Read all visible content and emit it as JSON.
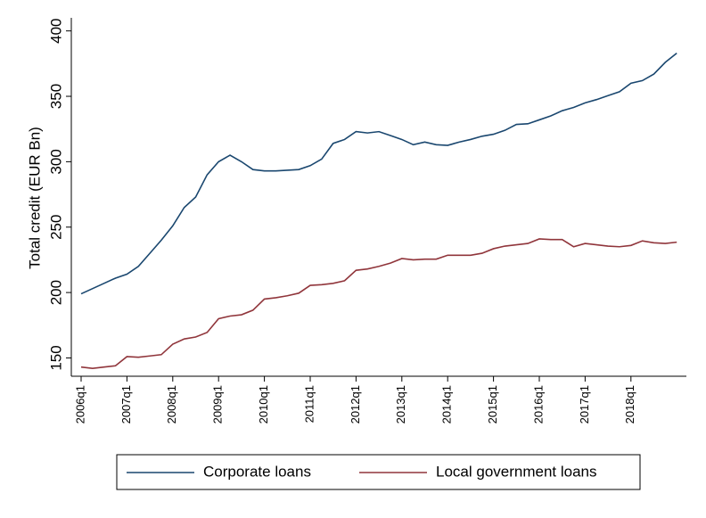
{
  "chart_data": {
    "type": "line",
    "ylabel": "Total credit (EUR Bn)",
    "categories": [
      "2006q1",
      null,
      null,
      null,
      "2007q1",
      null,
      null,
      null,
      "2008q1",
      null,
      null,
      null,
      "2009q1",
      null,
      null,
      null,
      "2010q1",
      null,
      null,
      null,
      "2011q1",
      null,
      null,
      null,
      "2012q1",
      null,
      null,
      null,
      "2013q1",
      null,
      null,
      null,
      "2014q1",
      null,
      null,
      null,
      "2015q1",
      null,
      null,
      null,
      "2016q1",
      null,
      null,
      null,
      "2017q1",
      null,
      null,
      null,
      "2018q1",
      null,
      null,
      null,
      null
    ],
    "series": [
      {
        "name": "Corporate loans",
        "color": "#1a476f",
        "values": [
          199,
          203,
          207,
          211,
          214,
          220,
          230,
          240,
          251,
          265,
          273,
          290,
          300,
          305,
          300,
          294,
          293,
          293,
          293.5,
          294,
          297,
          302,
          314,
          317,
          323,
          322,
          323,
          320,
          317,
          313,
          315,
          313,
          312.5,
          315,
          317,
          319.5,
          321,
          324,
          328.5,
          329,
          332,
          335,
          339,
          341.5,
          345,
          347.5,
          350.5,
          353.5,
          360,
          362,
          367,
          376,
          383
        ]
      },
      {
        "name": "Local government loans",
        "color": "#90353b",
        "values": [
          143,
          142,
          143,
          144,
          151,
          150.5,
          151.5,
          152.5,
          160.5,
          164.5,
          166,
          169.5,
          180,
          182,
          183,
          186.5,
          195,
          196,
          197.5,
          199.5,
          205.5,
          206,
          207,
          209,
          217,
          218,
          220,
          222.5,
          226,
          225,
          225.5,
          225.5,
          228.5,
          228.5,
          228.5,
          230,
          233.5,
          235.5,
          236.5,
          237.5,
          241,
          240.5,
          240.5,
          235,
          237.5,
          236.5,
          235.5,
          235,
          236,
          239.5,
          238,
          237.5,
          238.5
        ]
      }
    ],
    "ylim": [
      136,
      410
    ],
    "yticks": [
      150,
      200,
      250,
      300,
      350,
      400
    ],
    "legend": "bottom"
  }
}
